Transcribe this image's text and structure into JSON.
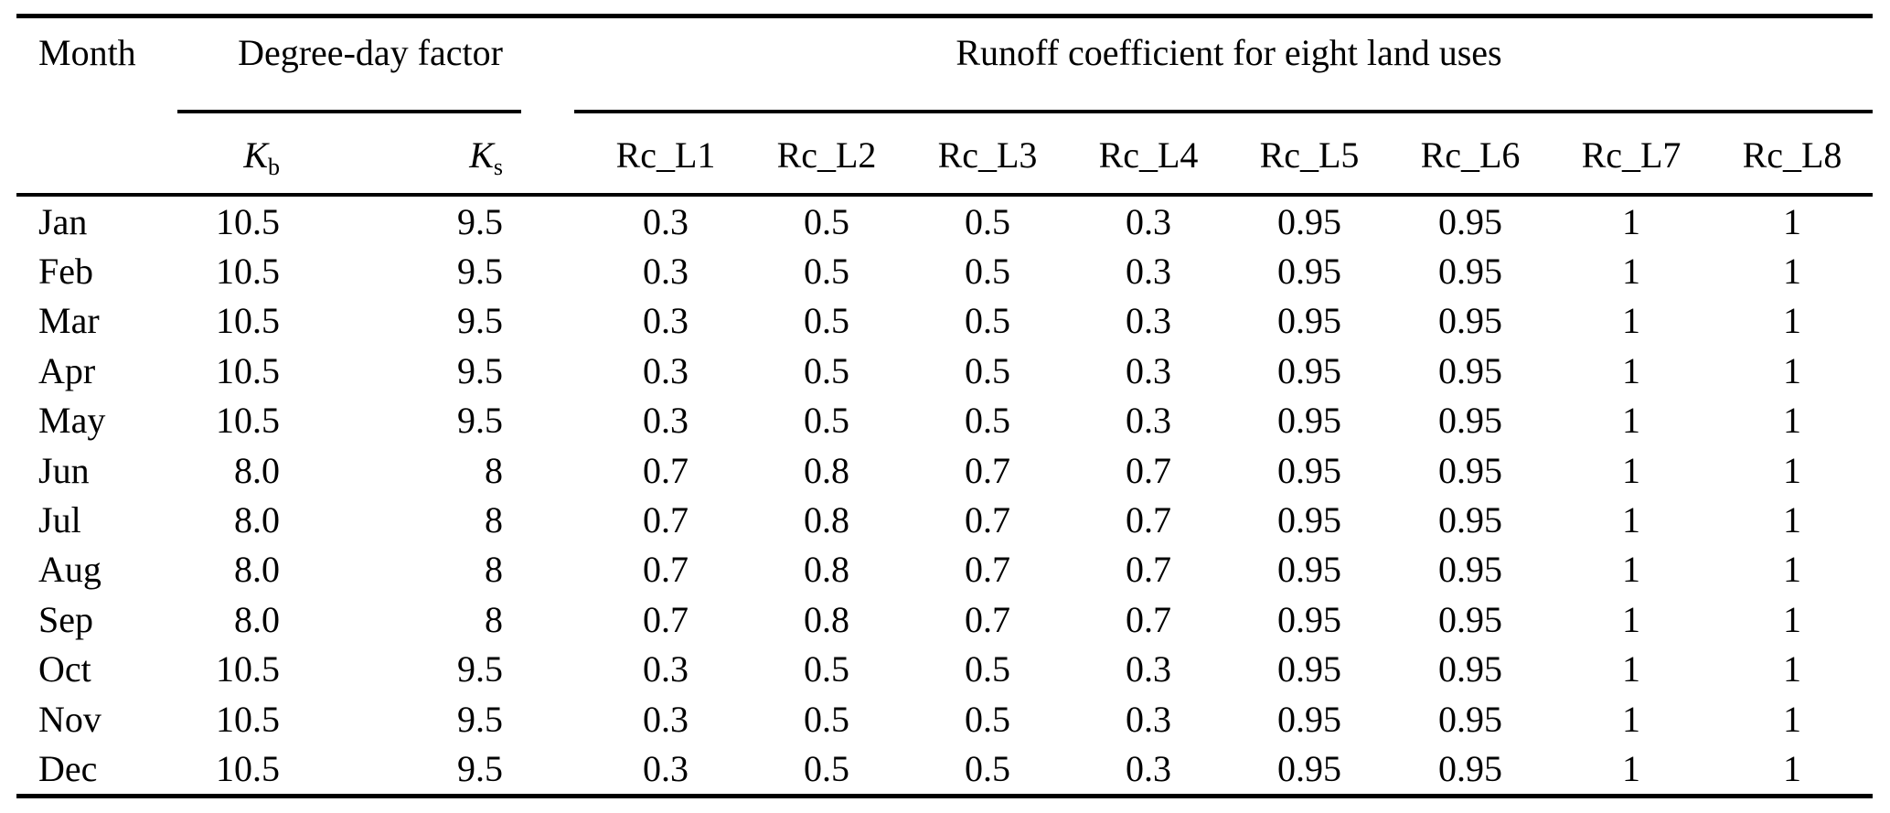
{
  "table": {
    "col_group_headers": {
      "month": "Month",
      "degree_day": "Degree-day factor",
      "runoff": "Runoff coefficient for eight land uses"
    },
    "sub_headers": {
      "kb": {
        "base": "K",
        "sub": "b"
      },
      "ks": {
        "base": "K",
        "sub": "s"
      },
      "rc": [
        "Rc_L1",
        "Rc_L2",
        "Rc_L3",
        "Rc_L4",
        "Rc_L5",
        "Rc_L6",
        "Rc_L7",
        "Rc_L8"
      ]
    },
    "rows": [
      {
        "month": "Jan",
        "kb": "10.5",
        "ks": "9.5",
        "rc": [
          "0.3",
          "0.5",
          "0.5",
          "0.3",
          "0.95",
          "0.95",
          "1",
          "1"
        ]
      },
      {
        "month": "Feb",
        "kb": "10.5",
        "ks": "9.5",
        "rc": [
          "0.3",
          "0.5",
          "0.5",
          "0.3",
          "0.95",
          "0.95",
          "1",
          "1"
        ]
      },
      {
        "month": "Mar",
        "kb": "10.5",
        "ks": "9.5",
        "rc": [
          "0.3",
          "0.5",
          "0.5",
          "0.3",
          "0.95",
          "0.95",
          "1",
          "1"
        ]
      },
      {
        "month": "Apr",
        "kb": "10.5",
        "ks": "9.5",
        "rc": [
          "0.3",
          "0.5",
          "0.5",
          "0.3",
          "0.95",
          "0.95",
          "1",
          "1"
        ]
      },
      {
        "month": "May",
        "kb": "10.5",
        "ks": "9.5",
        "rc": [
          "0.3",
          "0.5",
          "0.5",
          "0.3",
          "0.95",
          "0.95",
          "1",
          "1"
        ]
      },
      {
        "month": "Jun",
        "kb": "8.0",
        "ks": "8",
        "rc": [
          "0.7",
          "0.8",
          "0.7",
          "0.7",
          "0.95",
          "0.95",
          "1",
          "1"
        ]
      },
      {
        "month": "Jul",
        "kb": "8.0",
        "ks": "8",
        "rc": [
          "0.7",
          "0.8",
          "0.7",
          "0.7",
          "0.95",
          "0.95",
          "1",
          "1"
        ]
      },
      {
        "month": "Aug",
        "kb": "8.0",
        "ks": "8",
        "rc": [
          "0.7",
          "0.8",
          "0.7",
          "0.7",
          "0.95",
          "0.95",
          "1",
          "1"
        ]
      },
      {
        "month": "Sep",
        "kb": "8.0",
        "ks": "8",
        "rc": [
          "0.7",
          "0.8",
          "0.7",
          "0.7",
          "0.95",
          "0.95",
          "1",
          "1"
        ]
      },
      {
        "month": "Oct",
        "kb": "10.5",
        "ks": "9.5",
        "rc": [
          "0.3",
          "0.5",
          "0.5",
          "0.3",
          "0.95",
          "0.95",
          "1",
          "1"
        ]
      },
      {
        "month": "Nov",
        "kb": "10.5",
        "ks": "9.5",
        "rc": [
          "0.3",
          "0.5",
          "0.5",
          "0.3",
          "0.95",
          "0.95",
          "1",
          "1"
        ]
      },
      {
        "month": "Dec",
        "kb": "10.5",
        "ks": "9.5",
        "rc": [
          "0.3",
          "0.5",
          "0.5",
          "0.3",
          "0.95",
          "0.95",
          "1",
          "1"
        ]
      }
    ]
  },
  "colors": {
    "text": "#000000",
    "background": "#ffffff",
    "rule": "#000000"
  }
}
